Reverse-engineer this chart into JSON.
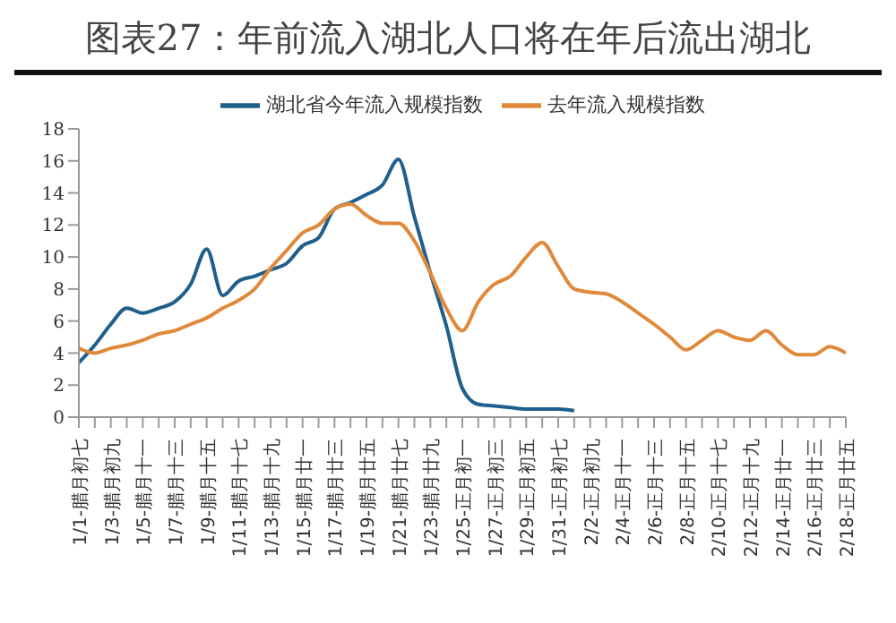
{
  "chart_data": {
    "type": "line",
    "title": "图表27：年前流入湖北人口将在年后流出湖北",
    "categories": [
      "1/1-腊月初七",
      null,
      "1/3-腊月初九",
      null,
      "1/5-腊月十一",
      null,
      "1/7-腊月十三",
      null,
      "1/9-腊月十五",
      null,
      "1/11-腊月十七",
      null,
      "1/13-腊月十九",
      null,
      "1/15-腊月廿一",
      null,
      "1/17-腊月廿三",
      null,
      "1/19-腊月廿五",
      null,
      "1/21-腊月廿七",
      null,
      "1/23-腊月廿九",
      null,
      "1/25-正月初一",
      null,
      "1/27-正月初三",
      null,
      "1/29-正月初五",
      null,
      "1/31-正月初七",
      null,
      "2/2-正月初九",
      null,
      "2/4-正月十一",
      null,
      "2/6-正月十三",
      null,
      "2/8-正月十五",
      null,
      "2/10-正月十七",
      null,
      "2/12-正月十九",
      null,
      "2/14-正月廿一",
      null,
      "2/16-正月廿三",
      null,
      "2/18-正月廿五"
    ],
    "series": [
      {
        "name": "湖北省今年流入规模指数",
        "color": "#1f5f8b",
        "values": [
          3.4,
          4.5,
          5.8,
          6.8,
          6.5,
          6.8,
          7.2,
          8.3,
          10.5,
          7.6,
          8.5,
          8.8,
          9.2,
          9.6,
          10.7,
          11.2,
          13.0,
          13.4,
          13.9,
          14.5,
          16.1,
          12.5,
          9.0,
          5.7,
          1.8,
          0.8,
          0.7,
          0.6,
          0.5,
          0.5,
          0.5,
          0.4,
          null,
          null,
          null,
          null,
          null,
          null,
          null,
          null,
          null,
          null,
          null,
          null,
          null,
          null,
          null,
          null,
          null
        ]
      },
      {
        "name": "去年流入规模指数",
        "color": "#e0893a",
        "values": [
          4.3,
          4.0,
          4.3,
          4.5,
          4.8,
          5.2,
          5.4,
          5.8,
          6.2,
          6.8,
          7.3,
          8.0,
          9.3,
          10.4,
          11.5,
          12.0,
          13.0,
          13.3,
          12.6,
          12.1,
          12.1,
          11.0,
          9.0,
          6.8,
          5.4,
          7.2,
          8.3,
          8.8,
          10.0,
          10.9,
          9.4,
          8.0,
          7.8,
          7.7,
          7.2,
          6.5,
          5.8,
          5.0,
          4.2,
          4.8,
          5.4,
          5.0,
          4.8,
          5.4,
          4.5,
          3.9,
          3.9,
          4.4,
          4.0
        ]
      }
    ],
    "ylim": [
      0,
      18
    ],
    "yticks": [
      0,
      2,
      4,
      6,
      8,
      10,
      12,
      14,
      16,
      18
    ],
    "grid": false,
    "legend": "top",
    "marker": "none",
    "line_style": "solid"
  }
}
